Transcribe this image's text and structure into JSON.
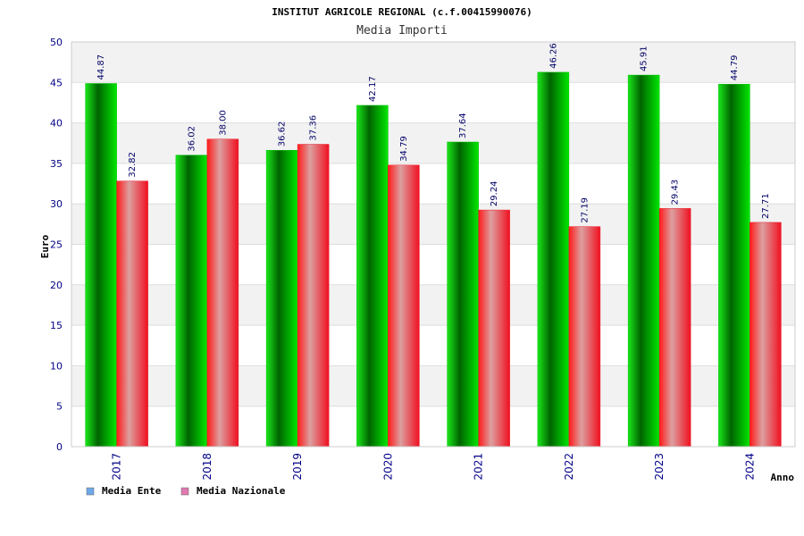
{
  "colors": {
    "media_ente_bar": "#00c000",
    "media_nazionale_bar": "#e81c28",
    "legend_media_ente": "#6fa8e8",
    "legend_media_nazionale": "#e07ab0",
    "band": "#f2f2f2",
    "axis_text": "#000088"
  },
  "chart_data": {
    "type": "bar",
    "title": "INSTITUT AGRICOLE REGIONAL (c.f.00415990076)",
    "subtitle": "Media Importi",
    "xlabel": "Anno",
    "ylabel": "Euro",
    "ylim": [
      0,
      50
    ],
    "yticks": [
      0,
      5,
      10,
      15,
      20,
      25,
      30,
      35,
      40,
      45,
      50
    ],
    "grid": true,
    "legend_position": "bottom-left",
    "categories": [
      "2017",
      "2018",
      "2019",
      "2020",
      "2021",
      "2022",
      "2023",
      "2024"
    ],
    "series": [
      {
        "name": "Media Ente",
        "values": [
          44.87,
          36.02,
          36.62,
          42.17,
          37.64,
          46.26,
          45.91,
          44.79
        ],
        "labels": [
          "44.87",
          "36.02",
          "36.62",
          "42.17",
          "37.64",
          "46.26",
          "45.91",
          "44.79"
        ]
      },
      {
        "name": "Media Nazionale",
        "values": [
          32.82,
          38.0,
          37.36,
          34.79,
          29.24,
          27.19,
          29.43,
          27.71
        ],
        "labels": [
          "32.82",
          "38.00",
          "37.36",
          "34.79",
          "29.24",
          "27.19",
          "29.43",
          "27.71"
        ]
      }
    ]
  }
}
